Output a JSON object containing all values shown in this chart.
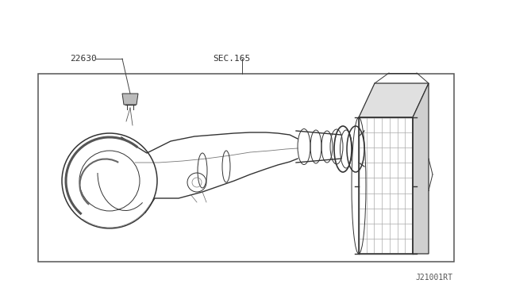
{
  "bg_color": "#ffffff",
  "border_color": "#555555",
  "line_color": "#333333",
  "text_color": "#333333",
  "label_22630": "22630",
  "label_sec165": "SEC.165",
  "label_ref": "J21001RT",
  "fig_w": 6.4,
  "fig_h": 3.72,
  "dpi": 100,
  "border": [
    0.075,
    0.115,
    0.855,
    0.76
  ],
  "lw": 0.7,
  "grid_color": "#aaaaaa",
  "light_gray": "#cccccc",
  "mid_gray": "#999999"
}
